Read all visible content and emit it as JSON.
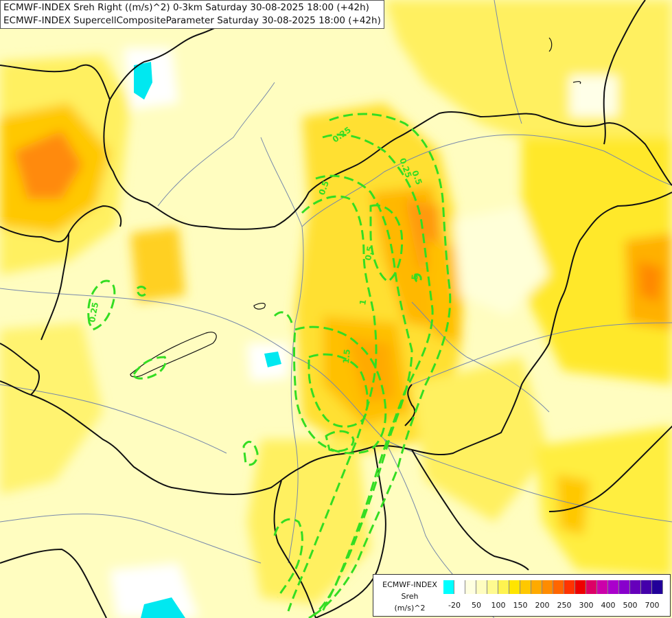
{
  "title_lines": [
    "ECMWF-INDEX Sreh Right ((m/s)^2) 0-3km Saturday 30-08-2025 18:00 (+42h)",
    "ECMWF-INDEX SupercellCompositeParameter Saturday 30-08-2025 18:00 (+42h)"
  ],
  "legend": {
    "title": [
      "ECMWF-INDEX",
      "Sreh",
      "(m/s)^2"
    ],
    "ticks": [
      "-20",
      "50",
      "100",
      "150",
      "200",
      "250",
      "300",
      "400",
      "500",
      "700"
    ],
    "colors": [
      "#00ffff",
      "#ffffff",
      "#ffffe0",
      "#fffdc0",
      "#fffa90",
      "#fff350",
      "#ffe500",
      "#ffc800",
      "#ffaa00",
      "#ff8c00",
      "#ff6600",
      "#ff3300",
      "#ee0000",
      "#dd0066",
      "#cc00aa",
      "#aa00cc",
      "#8800cc",
      "#6600bb",
      "#4400aa",
      "#220099"
    ]
  },
  "contour_labels": [
    "0.25",
    "0.25",
    "0.25",
    "0.5",
    "0.5",
    "0.5",
    "1",
    "1.5",
    "5"
  ],
  "colors": {
    "contour": "#33dd22",
    "border": "#111111",
    "river": "#7788aa"
  }
}
